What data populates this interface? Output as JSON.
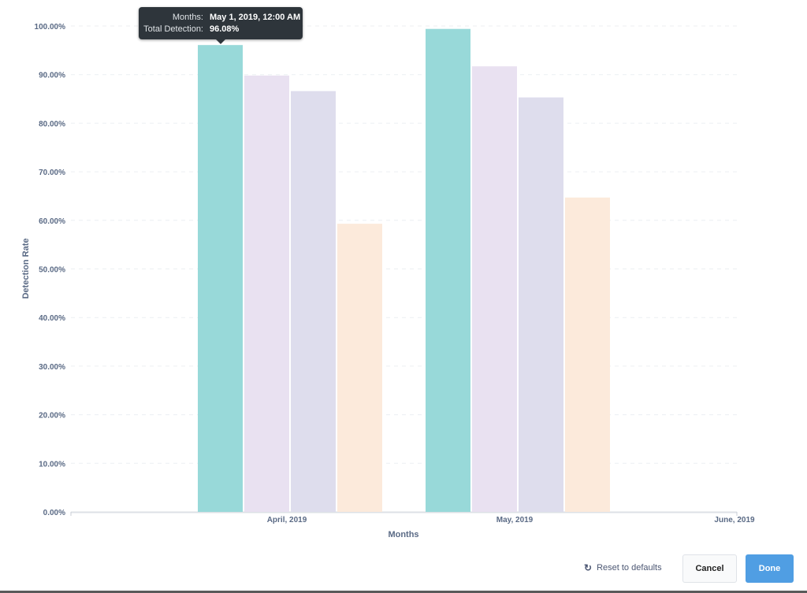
{
  "chart_data": {
    "type": "bar",
    "xlabel": "Months",
    "ylabel": "Detection Rate",
    "x_ticks": [
      "April, 2019",
      "May, 2019",
      "June, 2019"
    ],
    "categories": [
      "April, 2019",
      "May, 2019"
    ],
    "series": [
      {
        "color": "#98d9d9",
        "values": [
          96.08,
          99.4
        ]
      },
      {
        "color": "#e9e1f1",
        "values": [
          89.8,
          91.7
        ]
      },
      {
        "color": "#dedded",
        "values": [
          86.6,
          85.3
        ]
      },
      {
        "color": "#fceadb",
        "values": [
          59.3,
          64.7
        ]
      }
    ],
    "ylim": [
      0,
      100
    ],
    "y_ticks": [
      "0.00%",
      "10.00%",
      "20.00%",
      "30.00%",
      "40.00%",
      "50.00%",
      "60.00%",
      "70.00%",
      "80.00%",
      "90.00%",
      "100.00%"
    ],
    "grid": true,
    "legend": "none"
  },
  "tooltip": {
    "months_label": "Months:",
    "months_value": "May 1, 2019, 12:00 AM",
    "detection_label": "Total Detection:",
    "detection_value": "96.08%"
  },
  "footer": {
    "reset_label": "Reset to defaults",
    "cancel_label": "Cancel",
    "done_label": "Done"
  }
}
